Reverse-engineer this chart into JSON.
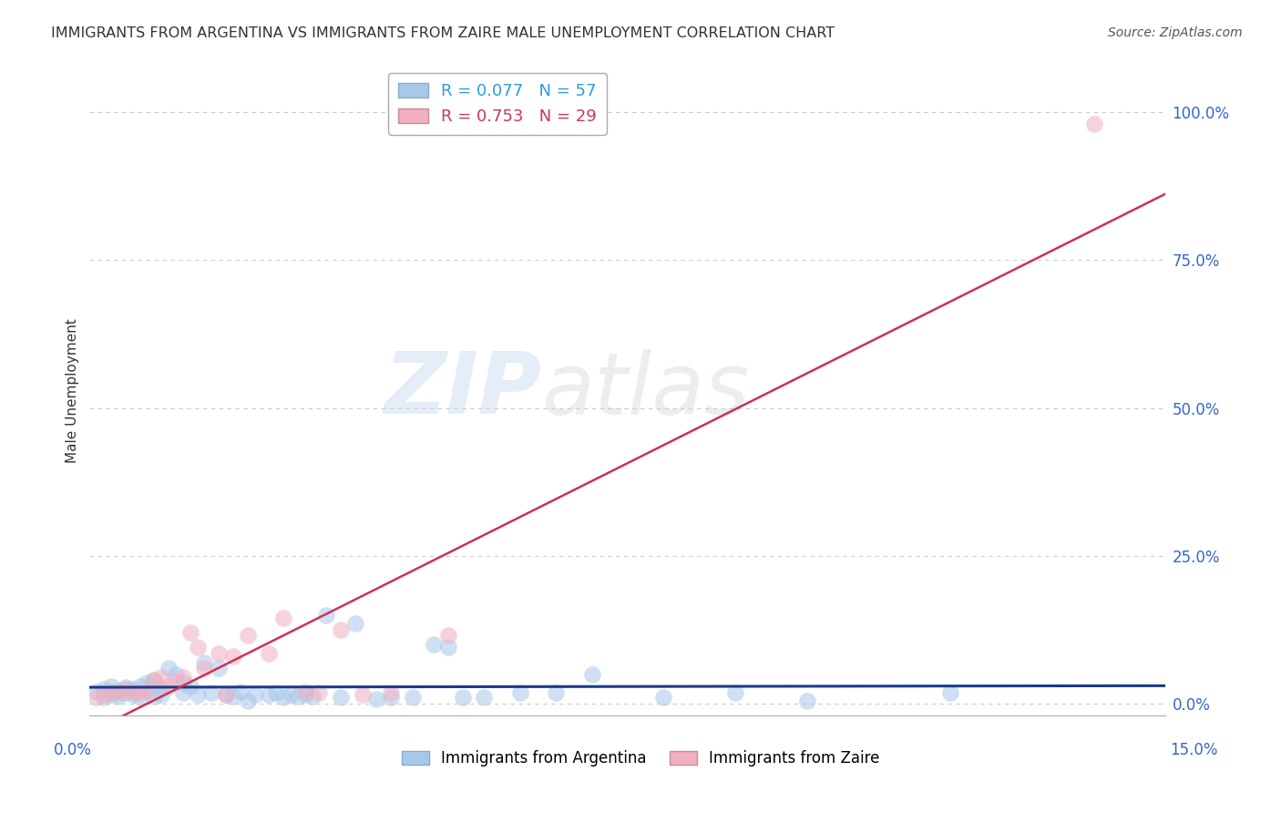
{
  "title": "IMMIGRANTS FROM ARGENTINA VS IMMIGRANTS FROM ZAIRE MALE UNEMPLOYMENT CORRELATION CHART",
  "source": "Source: ZipAtlas.com",
  "ylabel": "Male Unemployment",
  "ytick_values": [
    0.0,
    0.25,
    0.5,
    0.75,
    1.0
  ],
  "xlim": [
    0.0,
    0.15
  ],
  "ylim": [
    -0.02,
    1.08
  ],
  "color_argentina": "#a8c8e8",
  "color_zaire": "#f0b0c0",
  "color_line_argentina": "#1a3a8a",
  "color_line_zaire": "#cc3355",
  "watermark_zip": "ZIP",
  "watermark_atlas": "atlas",
  "legend_label_1": "R = 0.077   N = 57",
  "legend_label_2": "R = 0.753   N = 29",
  "legend_color_1": "#3399dd",
  "legend_color_2": "#cc3366",
  "argentina_x": [
    0.001,
    0.002,
    0.002,
    0.003,
    0.003,
    0.004,
    0.004,
    0.005,
    0.005,
    0.006,
    0.006,
    0.007,
    0.007,
    0.008,
    0.008,
    0.009,
    0.009,
    0.01,
    0.01,
    0.011,
    0.012,
    0.013,
    0.013,
    0.014,
    0.015,
    0.016,
    0.017,
    0.018,
    0.019,
    0.02,
    0.021,
    0.022,
    0.023,
    0.025,
    0.026,
    0.027,
    0.028,
    0.029,
    0.03,
    0.031,
    0.033,
    0.035,
    0.037,
    0.04,
    0.042,
    0.045,
    0.048,
    0.05,
    0.052,
    0.055,
    0.06,
    0.065,
    0.07,
    0.08,
    0.09,
    0.1,
    0.12
  ],
  "argentina_y": [
    0.02,
    0.01,
    0.025,
    0.015,
    0.03,
    0.012,
    0.022,
    0.018,
    0.028,
    0.015,
    0.025,
    0.01,
    0.03,
    0.02,
    0.035,
    0.012,
    0.04,
    0.015,
    0.025,
    0.06,
    0.05,
    0.018,
    0.035,
    0.03,
    0.015,
    0.07,
    0.018,
    0.06,
    0.015,
    0.012,
    0.02,
    0.005,
    0.015,
    0.015,
    0.018,
    0.01,
    0.015,
    0.012,
    0.015,
    0.012,
    0.15,
    0.01,
    0.135,
    0.008,
    0.01,
    0.01,
    0.1,
    0.095,
    0.01,
    0.01,
    0.018,
    0.018,
    0.05,
    0.01,
    0.018,
    0.005,
    0.018
  ],
  "zaire_x": [
    0.001,
    0.002,
    0.003,
    0.004,
    0.005,
    0.006,
    0.007,
    0.008,
    0.009,
    0.01,
    0.011,
    0.012,
    0.013,
    0.014,
    0.015,
    0.016,
    0.018,
    0.019,
    0.02,
    0.022,
    0.025,
    0.027,
    0.03,
    0.032,
    0.035,
    0.038,
    0.042,
    0.05,
    0.14
  ],
  "zaire_y": [
    0.01,
    0.015,
    0.02,
    0.018,
    0.025,
    0.02,
    0.018,
    0.022,
    0.04,
    0.045,
    0.03,
    0.038,
    0.045,
    0.12,
    0.095,
    0.06,
    0.085,
    0.015,
    0.08,
    0.115,
    0.085,
    0.145,
    0.02,
    0.018,
    0.125,
    0.015,
    0.018,
    0.115,
    0.98
  ],
  "line_arg_slope": 0.077,
  "line_arg_intercept": 0.008,
  "line_zaire_slope": 6.8,
  "line_zaire_intercept": -0.03
}
